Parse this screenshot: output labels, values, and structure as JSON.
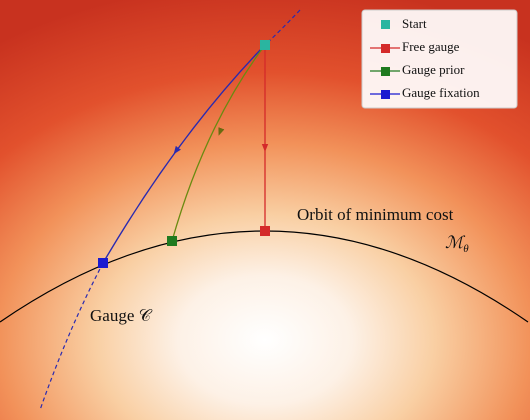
{
  "legend": {
    "entries": [
      "Start",
      "Free gauge",
      "Gauge prior",
      "Gauge fixation"
    ]
  },
  "labels": {
    "orbit": "Orbit of minimum cost",
    "manifold": {
      "symbol": "ℳ",
      "subscript": "θ"
    },
    "gauge": "Gauge 𝒞"
  }
}
